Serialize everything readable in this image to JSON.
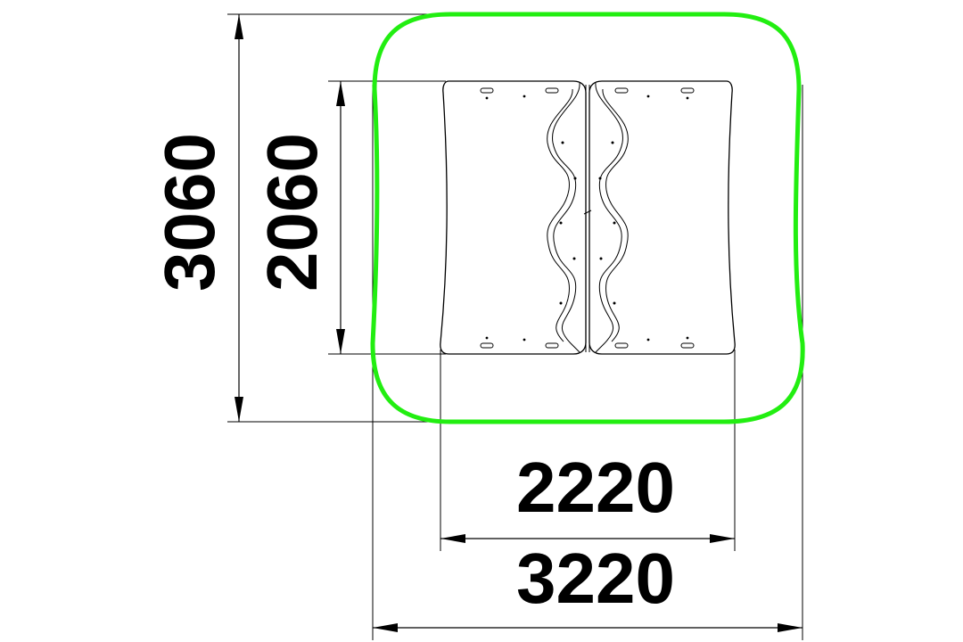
{
  "drawing": {
    "safety_zone_color": "#22ee11",
    "line_color": "#000000"
  },
  "dimensions": {
    "outer_height": "3060",
    "inner_height": "2060",
    "inner_width": "2220",
    "outer_width": "3220"
  }
}
